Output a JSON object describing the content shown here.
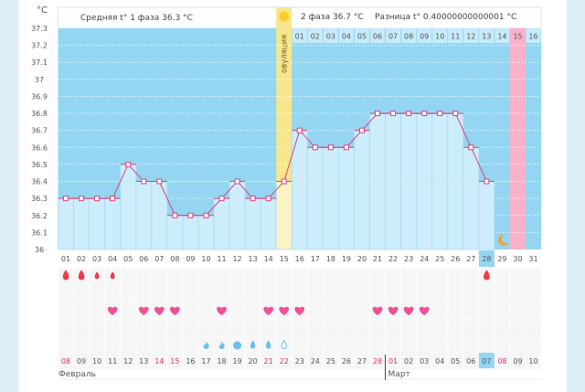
{
  "unit_label": "°C",
  "header": {
    "phase1": "Средняя t° 1 фаза 36.3 °C",
    "phase2": "2 фаза 36.7 °C",
    "difference": "Разница t° 0.40000000000001 °C"
  },
  "ovulation_label": "овуляция",
  "y_ticks": [
    "37.3",
    "37.2",
    "37.1",
    "37",
    "36.9",
    "36.8",
    "36.7",
    "36.6",
    "36.5",
    "36.4",
    "36.3",
    "36.2",
    "36.1",
    "36"
  ],
  "cycle_days": [
    "01",
    "02",
    "03",
    "04",
    "05",
    "06",
    "07",
    "08",
    "09",
    "10",
    "11",
    "12",
    "13",
    "14",
    "15",
    "16",
    "17",
    "18",
    "19",
    "20",
    "21",
    "22",
    "23",
    "24",
    "25",
    "26",
    "27",
    "28",
    "29",
    "30",
    "31"
  ],
  "next_cycle_days": [
    "01",
    "02",
    "03",
    "04",
    "05",
    "06",
    "07",
    "08",
    "09",
    "10",
    "11",
    "12",
    "13",
    "14",
    "15",
    "16"
  ],
  "temperatures": [
    36.3,
    36.3,
    36.3,
    36.3,
    36.5,
    36.4,
    36.4,
    36.2,
    36.2,
    36.2,
    36.3,
    36.4,
    36.3,
    36.3,
    36.4,
    36.7,
    36.6,
    36.6,
    36.6,
    36.7,
    36.8,
    36.8,
    36.8,
    36.8,
    36.8,
    36.8,
    36.6,
    36.4
  ],
  "coverline": 36.4,
  "ovulation_day": 15,
  "today_day": 28,
  "moon_day": 29,
  "expected_period_day": 30,
  "next_cycle_marked_day": 15,
  "bleeding": [
    {
      "day": 1,
      "size": "large"
    },
    {
      "day": 2,
      "size": "large"
    },
    {
      "day": 3,
      "size": "small"
    },
    {
      "day": 4,
      "size": "small"
    },
    {
      "day": 28,
      "size": "large"
    }
  ],
  "hearts_days": [
    4,
    6,
    7,
    8,
    11,
    14,
    15,
    16,
    21,
    22,
    23,
    24
  ],
  "discharge": [
    {
      "day": 10,
      "type": "drop-curl"
    },
    {
      "day": 11,
      "type": "drop-curl"
    },
    {
      "day": 12,
      "type": "drop-round"
    },
    {
      "day": 13,
      "type": "drop"
    },
    {
      "day": 14,
      "type": "drop"
    },
    {
      "day": 15,
      "type": "drop-outline"
    }
  ],
  "dates": [
    "08",
    "09",
    "10",
    "11",
    "12",
    "13",
    "14",
    "15",
    "16",
    "17",
    "18",
    "19",
    "20",
    "21",
    "22",
    "23",
    "24",
    "25",
    "26",
    "27",
    "28",
    "01",
    "02",
    "03",
    "04",
    "05",
    "06",
    "07",
    "08",
    "09",
    "10"
  ],
  "weekend_dates_idx": [
    0,
    6,
    7,
    13,
    14,
    20,
    21,
    28
  ],
  "months": [
    {
      "label": "Февраль",
      "start": 0
    },
    {
      "label": "Март",
      "start": 21
    }
  ],
  "colors": {
    "sky": "#94d6f2",
    "bar": "#cdedfc",
    "line": "#d9417a",
    "ovulation": "#f7e68c",
    "period": "#f9b2c9",
    "blood": "#f03a4a",
    "heart": "#f0509a",
    "water": "#6cbfea",
    "moon": "#f4a21f",
    "sun": "#f9cf2a",
    "weekend": "#e0335f"
  }
}
